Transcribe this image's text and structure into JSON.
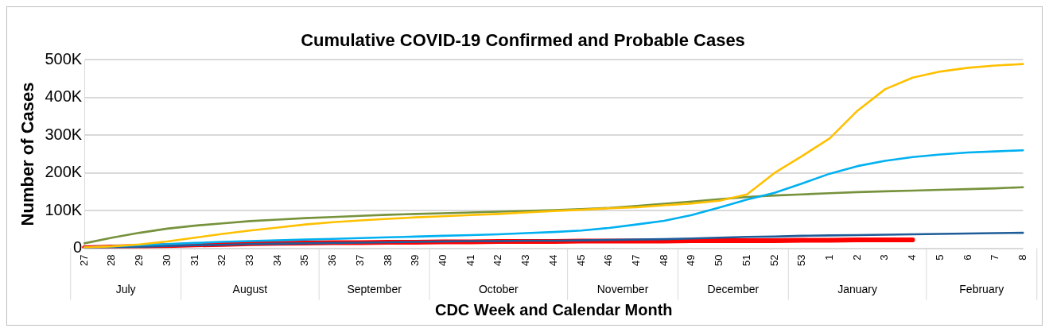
{
  "chart_data": {
    "type": "line",
    "title": "Cumulative COVID-19 Confirmed and Probable Cases",
    "xlabel": "CDC Week and Calendar Month",
    "ylabel": "Number of Cases",
    "categories": [
      "27",
      "28",
      "29",
      "30",
      "31",
      "32",
      "33",
      "34",
      "35",
      "36",
      "37",
      "38",
      "39",
      "40",
      "41",
      "42",
      "43",
      "44",
      "45",
      "46",
      "47",
      "48",
      "49",
      "50",
      "51",
      "52",
      "53",
      "1",
      "2",
      "3",
      "4",
      "5",
      "6",
      "7",
      "8"
    ],
    "series": [
      {
        "color": "#ffc000",
        "values": [
          2000,
          5000,
          10000,
          18000,
          28000,
          38000,
          47000,
          55000,
          63000,
          69000,
          74000,
          78000,
          82000,
          85000,
          88000,
          91000,
          95000,
          99000,
          102000,
          106000,
          109000,
          114000,
          119000,
          126000,
          143000,
          200000,
          245000,
          292000,
          365000,
          422000,
          453000,
          469000,
          479000,
          485000,
          489000
        ]
      },
      {
        "color": "#00b0f0",
        "values": [
          2000,
          5000,
          8000,
          11000,
          14000,
          17000,
          19000,
          21000,
          23000,
          25000,
          27000,
          29000,
          31000,
          33000,
          35000,
          37000,
          40000,
          43000,
          47000,
          54000,
          63000,
          73000,
          88000,
          108000,
          129000,
          147000,
          172000,
          198000,
          218000,
          232000,
          242000,
          249000,
          254000,
          257000,
          260000
        ]
      },
      {
        "color": "#76923c",
        "values": [
          13000,
          28000,
          41000,
          52000,
          60000,
          66000,
          72000,
          76000,
          80000,
          83000,
          86000,
          89000,
          91000,
          93000,
          95000,
          97000,
          99000,
          101000,
          104000,
          107000,
          112000,
          118000,
          124000,
          130000,
          136000,
          140000,
          143000,
          146000,
          149000,
          151000,
          153000,
          155000,
          157000,
          159000,
          162000
        ]
      },
      {
        "color": "#1f5c99",
        "values": [
          1000,
          2000,
          4000,
          6000,
          8000,
          9000,
          11000,
          12000,
          13000,
          14000,
          15000,
          16000,
          17000,
          18000,
          19000,
          19000,
          20000,
          20000,
          21000,
          22000,
          23000,
          24000,
          26000,
          28000,
          30000,
          31000,
          33000,
          34000,
          35000,
          36000,
          37000,
          38000,
          39000,
          40000,
          41000
        ]
      },
      {
        "color": "#ff0000",
        "values": [
          1000,
          3000,
          5000,
          7000,
          9000,
          10000,
          12000,
          13000,
          14000,
          15000,
          15000,
          16000,
          16000,
          17000,
          17000,
          18000,
          18000,
          18000,
          19000,
          19000,
          19000,
          19000,
          20000,
          20000,
          20000,
          20000,
          21000,
          21000,
          22000,
          22000,
          22000,
          null,
          null,
          null,
          null
        ]
      }
    ],
    "ylim": [
      0,
      500000
    ],
    "yticks": [
      0,
      {
        "value": 100000,
        "label": "100K"
      },
      {
        "value": 200000,
        "label": "200K"
      },
      {
        "value": 300000,
        "label": "300K"
      },
      {
        "value": 400000,
        "label": "400K"
      },
      {
        "value": 500000,
        "label": "500K"
      }
    ],
    "grid": "y",
    "legend": false,
    "marker": "none",
    "line_style": "solid",
    "annotations": [
      "July",
      "August",
      "September",
      "October",
      "November",
      "December",
      "January",
      "February"
    ]
  }
}
